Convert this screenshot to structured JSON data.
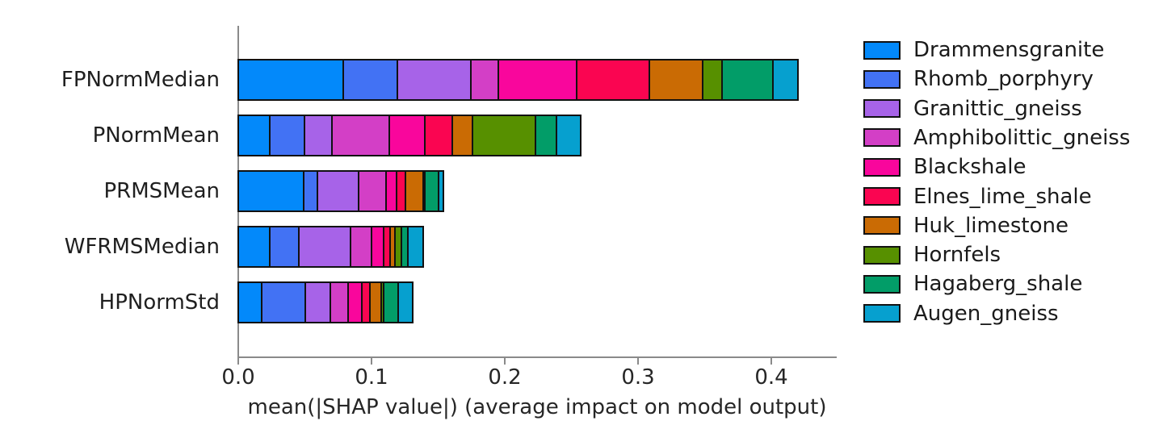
{
  "figure": {
    "background": "#ffffff",
    "spine_color": "#8a8a8a",
    "bar_edge_color": "#111111",
    "text_color": "#262626"
  },
  "chart_data": {
    "type": "bar",
    "orientation": "horizontal-stacked",
    "title": "",
    "xlabel": "mean(|SHAP value|) (average impact on model output)",
    "ylabel": "",
    "categories": [
      "FPNormMedian",
      "PNormMean",
      "PRMSMean",
      "WFRMSMedian",
      "HPNormStd"
    ],
    "xticks": [
      0.0,
      0.1,
      0.2,
      0.3,
      0.4
    ],
    "xtick_labels": [
      "0.0",
      "0.1",
      "0.2",
      "0.3",
      "0.4"
    ],
    "xlim": [
      0,
      0.447
    ],
    "grid": false,
    "legend_position": "right-outside",
    "series": [
      {
        "name": "Drammensgranite",
        "color": "#0389fa",
        "values": [
          0.08,
          0.025,
          0.05,
          0.025,
          0.019
        ]
      },
      {
        "name": "Rhomb_porphyry",
        "color": "#4272f4",
        "values": [
          0.042,
          0.027,
          0.012,
          0.023,
          0.034
        ]
      },
      {
        "name": "Granittic_gneiss",
        "color": "#a763e8",
        "values": [
          0.056,
          0.022,
          0.032,
          0.04,
          0.02
        ]
      },
      {
        "name": "Amphibolittic_gneiss",
        "color": "#d33fc6",
        "values": [
          0.022,
          0.044,
          0.022,
          0.017,
          0.014
        ]
      },
      {
        "name": "Blackshale",
        "color": "#f9069c",
        "values": [
          0.06,
          0.028,
          0.009,
          0.01,
          0.012
        ]
      },
      {
        "name": "Elnes_lime_shale",
        "color": "#fa0551",
        "values": [
          0.056,
          0.022,
          0.008,
          0.006,
          0.007
        ]
      },
      {
        "name": "Huk_limestone",
        "color": "#ca6b04",
        "values": [
          0.041,
          0.016,
          0.014,
          0.005,
          0.01
        ]
      },
      {
        "name": "Hornfels",
        "color": "#579000",
        "values": [
          0.016,
          0.049,
          0.003,
          0.006,
          0.003
        ]
      },
      {
        "name": "Hagaberg_shale",
        "color": "#029d68",
        "values": [
          0.039,
          0.017,
          0.011,
          0.006,
          0.012
        ]
      },
      {
        "name": "Augen_gneiss",
        "color": "#06a0cf",
        "values": [
          0.02,
          0.019,
          0.005,
          0.013,
          0.012
        ]
      }
    ]
  }
}
